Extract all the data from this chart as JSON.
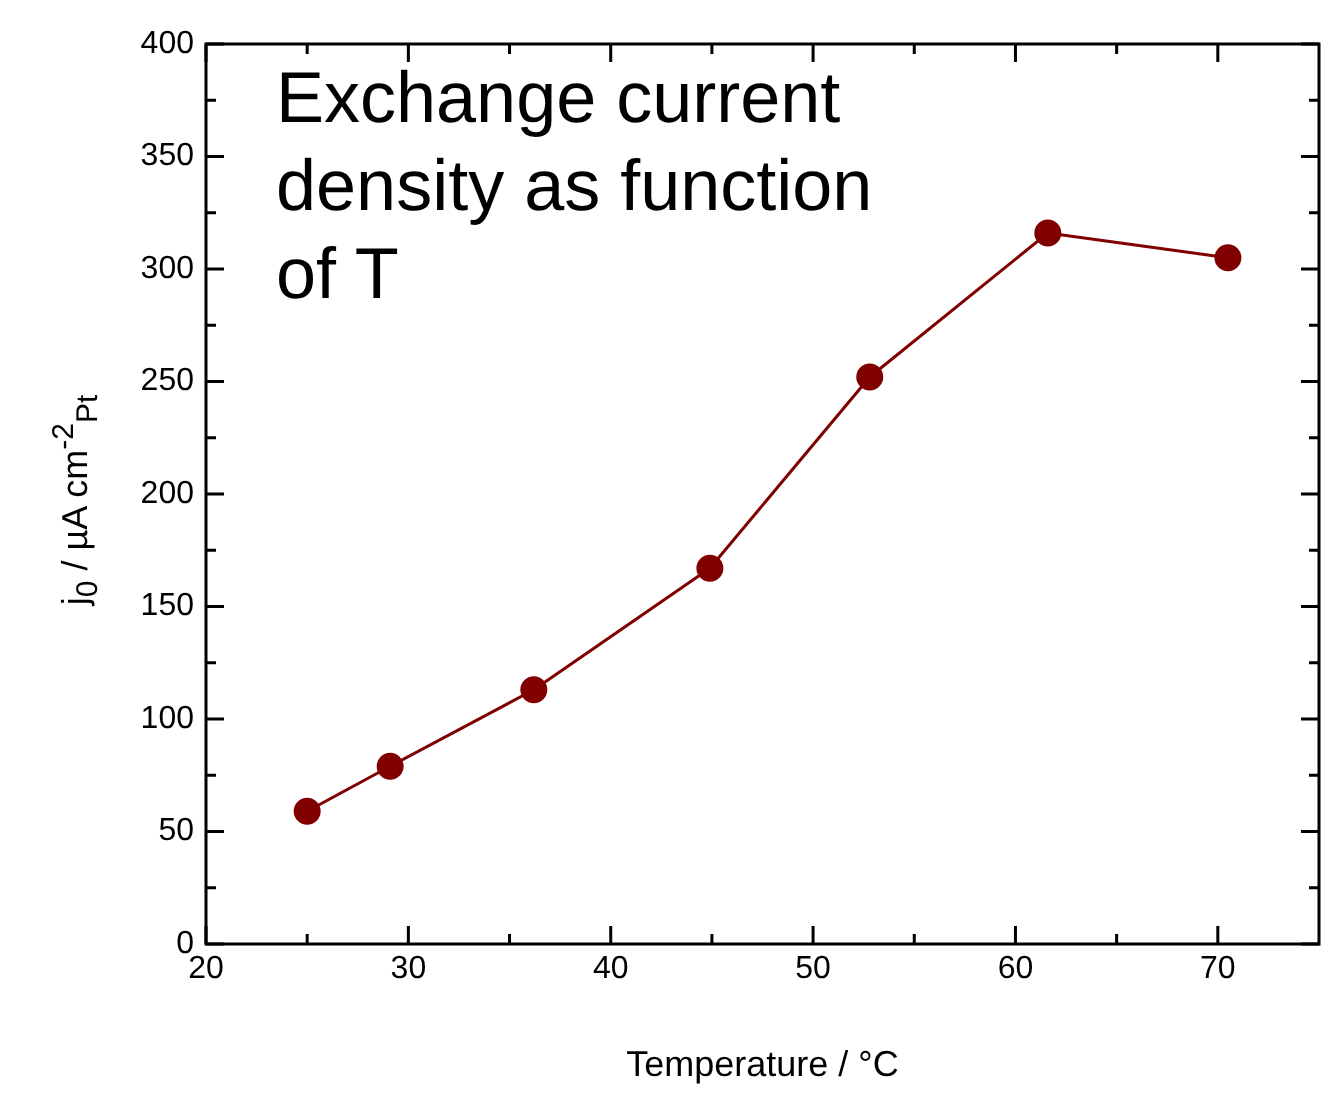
{
  "chart_data": {
    "type": "line",
    "title": "Exchange current density as function of T",
    "xlabel": "Temperature / °C",
    "ylabel": "j$_{0}$ / µA cm$^{-2}$$_{Pt}$",
    "x": [
      25,
      29.1,
      36.2,
      44.9,
      52.8,
      61.6,
      70.5
    ],
    "series": [
      {
        "color": "#800000",
        "values": [
          59,
          79,
          113,
          167,
          252,
          316,
          305
        ]
      }
    ],
    "xlim": [
      20,
      75
    ],
    "xticks": [
      20,
      {
        "value": 25,
        "label": null
      },
      30,
      {
        "value": 35,
        "label": null
      },
      40,
      {
        "value": 45,
        "label": null
      },
      50,
      {
        "value": 55,
        "label": null
      },
      60,
      {
        "value": 65,
        "label": null
      },
      70
    ],
    "ylim": [
      0,
      400
    ],
    "yticks": [
      0,
      {
        "value": 25,
        "label": null
      },
      50,
      {
        "value": 75,
        "label": null
      },
      100,
      {
        "value": 125,
        "label": null
      },
      150,
      {
        "value": 175,
        "label": null
      },
      200,
      {
        "value": 225,
        "label": null
      },
      250,
      {
        "value": 275,
        "label": null
      },
      300,
      {
        "value": 325,
        "label": null
      },
      350,
      {
        "value": 375,
        "label": null
      },
      400
    ],
    "marker": "circle",
    "line_style": "solid",
    "grid": false,
    "legend": false
  }
}
